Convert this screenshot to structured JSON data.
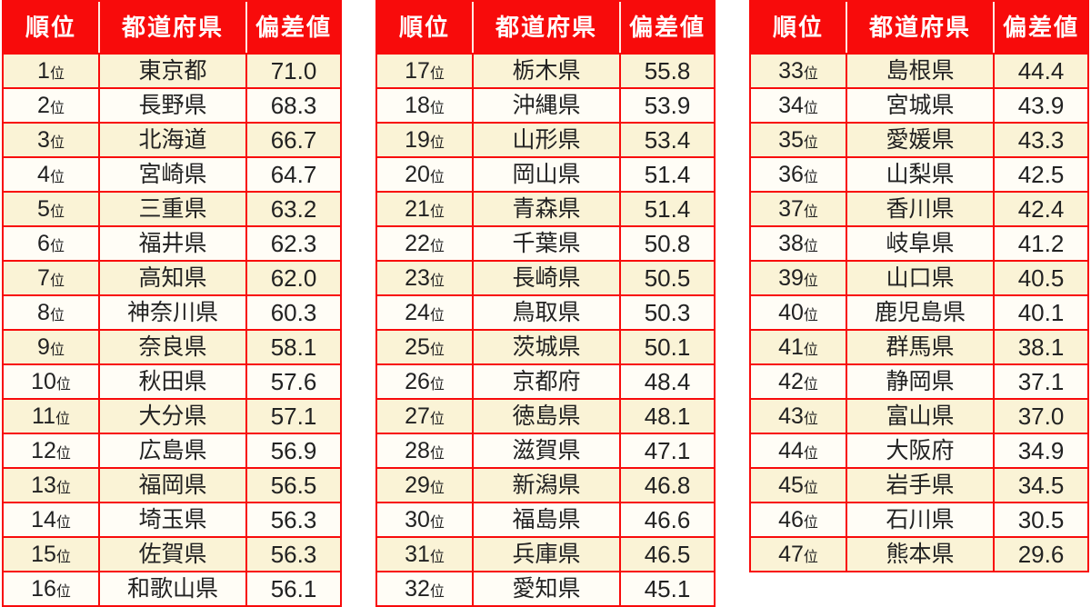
{
  "colors": {
    "accent_red": "#f80b0b",
    "row_cream": "#faf3d6",
    "row_white": "#fffdf6",
    "header_text": "#ffffff",
    "body_text": "#222222"
  },
  "chart_data": {
    "type": "table",
    "columns": [
      "順位",
      "都道府県",
      "偏差値"
    ],
    "rank_suffix": "位",
    "layout": "three table blocks side by side, red header row, alternating cream/white data rows, red grid borders",
    "tables": [
      {
        "rows": [
          {
            "rank": "1",
            "pref": "東京都",
            "value": "71.0"
          },
          {
            "rank": "2",
            "pref": "長野県",
            "value": "68.3"
          },
          {
            "rank": "3",
            "pref": "北海道",
            "value": "66.7"
          },
          {
            "rank": "4",
            "pref": "宮崎県",
            "value": "64.7"
          },
          {
            "rank": "5",
            "pref": "三重県",
            "value": "63.2"
          },
          {
            "rank": "6",
            "pref": "福井県",
            "value": "62.3"
          },
          {
            "rank": "7",
            "pref": "高知県",
            "value": "62.0"
          },
          {
            "rank": "8",
            "pref": "神奈川県",
            "value": "60.3"
          },
          {
            "rank": "9",
            "pref": "奈良県",
            "value": "58.1"
          },
          {
            "rank": "10",
            "pref": "秋田県",
            "value": "57.6"
          },
          {
            "rank": "11",
            "pref": "大分県",
            "value": "57.1"
          },
          {
            "rank": "12",
            "pref": "広島県",
            "value": "56.9"
          },
          {
            "rank": "13",
            "pref": "福岡県",
            "value": "56.5"
          },
          {
            "rank": "14",
            "pref": "埼玉県",
            "value": "56.3"
          },
          {
            "rank": "15",
            "pref": "佐賀県",
            "value": "56.3"
          },
          {
            "rank": "16",
            "pref": "和歌山県",
            "value": "56.1"
          }
        ]
      },
      {
        "rows": [
          {
            "rank": "17",
            "pref": "栃木県",
            "value": "55.8"
          },
          {
            "rank": "18",
            "pref": "沖縄県",
            "value": "53.9"
          },
          {
            "rank": "19",
            "pref": "山形県",
            "value": "53.4"
          },
          {
            "rank": "20",
            "pref": "岡山県",
            "value": "51.4"
          },
          {
            "rank": "21",
            "pref": "青森県",
            "value": "51.4"
          },
          {
            "rank": "22",
            "pref": "千葉県",
            "value": "50.8"
          },
          {
            "rank": "23",
            "pref": "長崎県",
            "value": "50.5"
          },
          {
            "rank": "24",
            "pref": "鳥取県",
            "value": "50.3"
          },
          {
            "rank": "25",
            "pref": "茨城県",
            "value": "50.1"
          },
          {
            "rank": "26",
            "pref": "京都府",
            "value": "48.4"
          },
          {
            "rank": "27",
            "pref": "徳島県",
            "value": "48.1"
          },
          {
            "rank": "28",
            "pref": "滋賀県",
            "value": "47.1"
          },
          {
            "rank": "29",
            "pref": "新潟県",
            "value": "46.8"
          },
          {
            "rank": "30",
            "pref": "福島県",
            "value": "46.6"
          },
          {
            "rank": "31",
            "pref": "兵庫県",
            "value": "46.5"
          },
          {
            "rank": "32",
            "pref": "愛知県",
            "value": "45.1"
          }
        ]
      },
      {
        "rows": [
          {
            "rank": "33",
            "pref": "島根県",
            "value": "44.4"
          },
          {
            "rank": "34",
            "pref": "宮城県",
            "value": "43.9"
          },
          {
            "rank": "35",
            "pref": "愛媛県",
            "value": "43.3"
          },
          {
            "rank": "36",
            "pref": "山梨県",
            "value": "42.5"
          },
          {
            "rank": "37",
            "pref": "香川県",
            "value": "42.4"
          },
          {
            "rank": "38",
            "pref": "岐阜県",
            "value": "41.2"
          },
          {
            "rank": "39",
            "pref": "山口県",
            "value": "40.5"
          },
          {
            "rank": "40",
            "pref": "鹿児島県",
            "value": "40.1"
          },
          {
            "rank": "41",
            "pref": "群馬県",
            "value": "38.1"
          },
          {
            "rank": "42",
            "pref": "静岡県",
            "value": "37.1"
          },
          {
            "rank": "43",
            "pref": "富山県",
            "value": "37.0"
          },
          {
            "rank": "44",
            "pref": "大阪府",
            "value": "34.9"
          },
          {
            "rank": "45",
            "pref": "岩手県",
            "value": "34.5"
          },
          {
            "rank": "46",
            "pref": "石川県",
            "value": "30.5"
          },
          {
            "rank": "47",
            "pref": "熊本県",
            "value": "29.6"
          }
        ]
      }
    ]
  }
}
